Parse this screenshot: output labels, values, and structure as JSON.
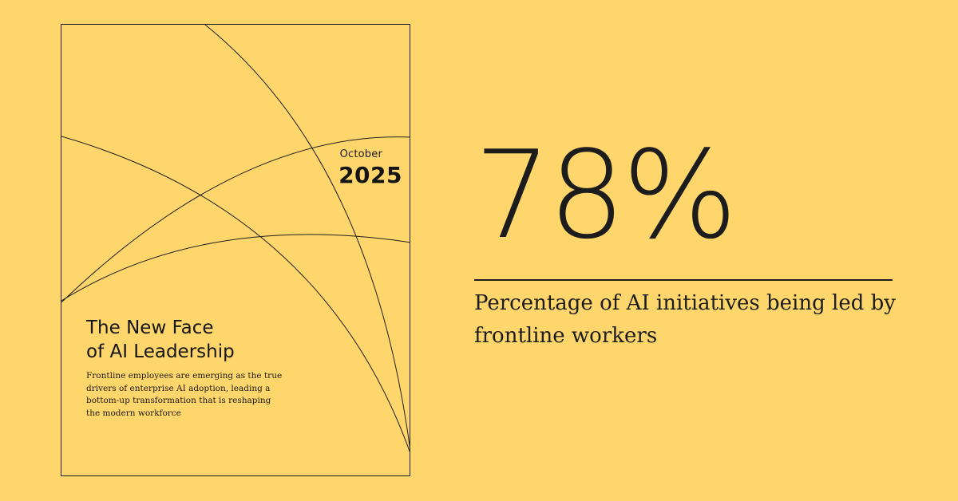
{
  "report": {
    "month": "October",
    "year": "2025",
    "title_lines": [
      "The New Face",
      "of AI Leadership"
    ],
    "description": "Frontline employees are emerging as the true drivers of enterprise AI adoption, leading a bottom-up transformation that is reshaping the modern workforce"
  },
  "stat": {
    "value": "78%",
    "caption": "Percentage of AI initiatives being led by frontline workers"
  },
  "colors": {
    "background": "#FFD66B",
    "ink": "#1C1C1C"
  }
}
